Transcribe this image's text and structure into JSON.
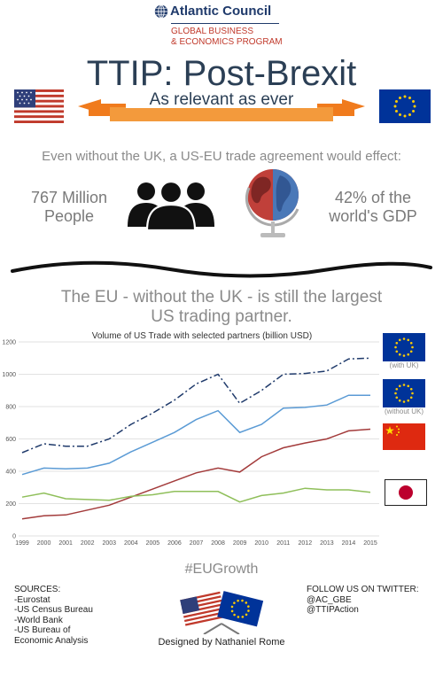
{
  "header": {
    "org_name": "Atlantic Council",
    "program_line1": "GLOBAL BUSINESS",
    "program_line2": "& ECONOMICS PROGRAM",
    "title": "TTIP: Post-Brexit",
    "subtitle": "As relevant as ever"
  },
  "intro": {
    "text": "Even without the UK, a US-EU trade agreement would effect:",
    "stat_left_line1": "767 Million",
    "stat_left_line2": "People",
    "stat_right_line1": "42% of the",
    "stat_right_line2": "world's GDP"
  },
  "section": {
    "line1": "The EU - without the UK - is still the largest",
    "line2": "US trading partner."
  },
  "chart_data": {
    "type": "line",
    "title": "Volume of US Trade with selected partners (billion USD)",
    "x": [
      1999,
      2000,
      2001,
      2002,
      2003,
      2004,
      2005,
      2006,
      2007,
      2008,
      2009,
      2010,
      2011,
      2012,
      2013,
      2014,
      2015
    ],
    "ylim": [
      0,
      1200
    ],
    "yticks": [
      0,
      200,
      400,
      600,
      800,
      1000,
      1200
    ],
    "grid": true,
    "series": [
      {
        "name": "(with UK)",
        "color": "#1f3a6b",
        "dash": "8,3,2,3",
        "values": [
          515,
          570,
          555,
          555,
          600,
          690,
          760,
          840,
          940,
          1000,
          820,
          900,
          1000,
          1005,
          1020,
          1095,
          1100
        ]
      },
      {
        "name": "(without UK)",
        "color": "#5b9bd5",
        "dash": "",
        "values": [
          380,
          420,
          415,
          420,
          450,
          520,
          580,
          640,
          720,
          775,
          640,
          690,
          790,
          795,
          810,
          870,
          870
        ]
      },
      {
        "name": "",
        "color": "#a33b3b",
        "dash": "",
        "values": [
          105,
          125,
          130,
          160,
          190,
          240,
          290,
          340,
          390,
          420,
          395,
          490,
          545,
          575,
          600,
          650,
          660
        ]
      },
      {
        "name": "",
        "color": "#8fbf5a",
        "dash": "",
        "values": [
          240,
          265,
          230,
          225,
          220,
          245,
          255,
          275,
          275,
          275,
          210,
          250,
          265,
          295,
          285,
          285,
          270
        ]
      }
    ]
  },
  "legend": {
    "with_uk": "(with UK)",
    "without_uk": "(without UK)"
  },
  "footer": {
    "hashtag": "#EUGrowth",
    "sources": [
      "SOURCES:",
      "-Eurostat",
      "-US Census Bureau",
      "-World Bank",
      "-US Bureau of",
      "Economic Analysis"
    ],
    "follow": [
      "FOLLOW US ON TWITTER:",
      "@AC_GBE",
      "@TTIPAction"
    ],
    "designer": "Designed by Nathaniel Rome"
  },
  "colors": {
    "navy": "#2b3f55",
    "accent_red": "#c0392b",
    "banner_orange": "#f07b1d",
    "eu_blue": "#003399",
    "eu_gold": "#ffcc00"
  }
}
